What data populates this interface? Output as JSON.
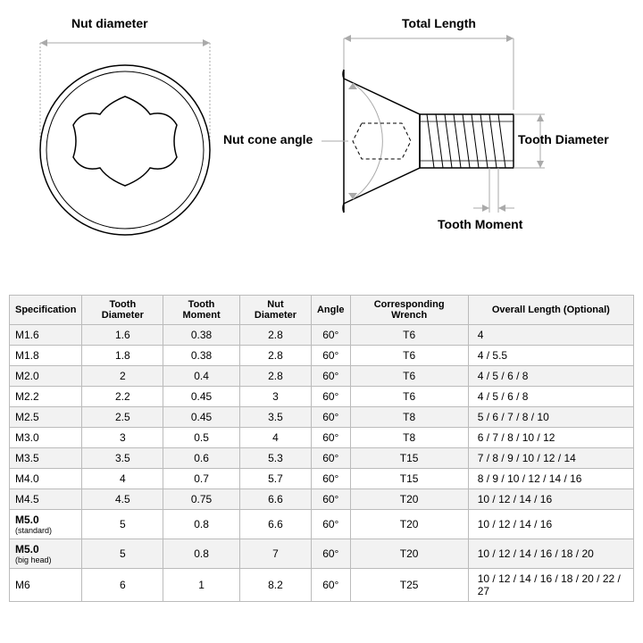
{
  "diagram": {
    "labels": {
      "nut_diameter": "Nut diameter",
      "total_length": "Total Length",
      "nut_cone_angle": "Nut cone angle",
      "tooth_diameter": "Tooth Diameter",
      "tooth_moment": "Tooth Moment"
    },
    "colors": {
      "line": "#000000",
      "arrow": "#aaaaaa",
      "background": "#ffffff"
    }
  },
  "table": {
    "columns": [
      "Specification",
      "Tooth Diameter",
      "Tooth Moment",
      "Nut Diameter",
      "Angle",
      "Corresponding Wrench",
      "Overall Length (Optional)"
    ],
    "rows": [
      [
        "M1.6",
        "1.6",
        "0.38",
        "2.8",
        "60°",
        "T6",
        "4"
      ],
      [
        "M1.8",
        "1.8",
        "0.38",
        "2.8",
        "60°",
        "T6",
        "4 / 5.5"
      ],
      [
        "M2.0",
        "2",
        "0.4",
        "2.8",
        "60°",
        "T6",
        "4 / 5 / 6 / 8"
      ],
      [
        "M2.2",
        "2.2",
        "0.45",
        "3",
        "60°",
        "T6",
        "4 / 5 / 6 / 8"
      ],
      [
        "M2.5",
        "2.5",
        "0.45",
        "3.5",
        "60°",
        "T8",
        "5 / 6 / 7 / 8 / 10"
      ],
      [
        "M3.0",
        "3",
        "0.5",
        "4",
        "60°",
        "T8",
        "6 / 7 / 8 / 10 / 12"
      ],
      [
        "M3.5",
        "3.5",
        "0.6",
        "5.3",
        "60°",
        "T15",
        "7 / 8 / 9 / 10 / 12 / 14"
      ],
      [
        "M4.0",
        "4",
        "0.7",
        "5.7",
        "60°",
        "T15",
        "8 / 9 / 10 / 12 / 14 / 16"
      ],
      [
        "M4.5",
        "4.5",
        "0.75",
        "6.6",
        "60°",
        "T20",
        "10 / 12 / 14 / 16"
      ],
      [
        "M5.0|(standard)",
        "5",
        "0.8",
        "6.6",
        "60°",
        "T20",
        "10 / 12 / 14 / 16"
      ],
      [
        "M5.0|(big head)",
        "5",
        "0.8",
        "7",
        "60°",
        "T20",
        "10 / 12 / 14 / 16 / 18 / 20"
      ],
      [
        "M6",
        "6",
        "1",
        "8.2",
        "60°",
        "T25",
        "10 / 12 / 14 / 16 / 18 / 20 / 22 / 27"
      ]
    ]
  }
}
